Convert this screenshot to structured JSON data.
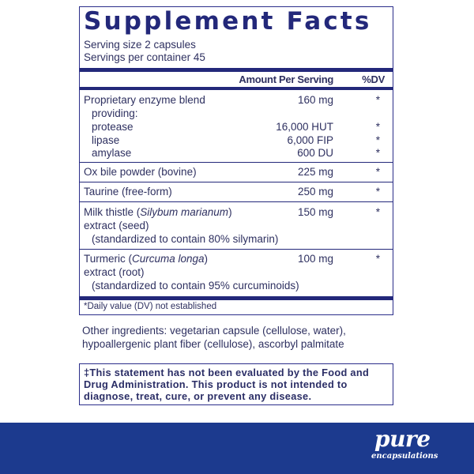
{
  "title": "Supplement Facts",
  "serving_size": "Serving size  2 capsules",
  "servings_per_container": "Servings per container  45",
  "header": {
    "amount": "Amount Per Serving",
    "dv": "%DV"
  },
  "rows": [
    {
      "name": "Proprietary enzyme blend",
      "amount": "160 mg",
      "dv": "*"
    },
    {
      "name": "providing:"
    },
    {
      "name": "protease",
      "amount": "16,000 HUT",
      "dv": "*"
    },
    {
      "name": "lipase",
      "amount": "6,000 FIP",
      "dv": "*"
    },
    {
      "name": "amylase",
      "amount": "600 DU",
      "dv": "*"
    },
    {
      "name": "Ox bile powder (bovine)",
      "amount": "225 mg",
      "dv": "*"
    },
    {
      "name": "Taurine (free-form)",
      "amount": "250 mg",
      "dv": "*"
    },
    {
      "name": "Milk thistle (",
      "latin": "Silybum marianum",
      "name_end": ")",
      "line2": "extract (seed)",
      "line3": "(standardized to contain 80% silymarin)",
      "amount": "150 mg",
      "dv": "*"
    },
    {
      "name": "Turmeric (",
      "latin": "Curcuma longa",
      "name_end": ")",
      "line2": "extract (root)",
      "line3": "(standardized to contain 95% curcuminoids)",
      "amount": "100 mg",
      "dv": "*"
    }
  ],
  "footnote": "*Daily value (DV) not established",
  "other_ingredients": [
    "Other ingredients: vegetarian capsule (cellulose, water),",
    "hypoallergenic plant fiber (cellulose), ascorbyl palmitate"
  ],
  "disclaimer": [
    "‡This statement has not been evaluated by the Food and",
    "Drug Administration. This product is not intended to",
    "diagnose, treat, cure, or prevent any disease."
  ],
  "brand": {
    "name": "pure",
    "sub": "encapsulations",
    "color": "#1c3a8e"
  }
}
